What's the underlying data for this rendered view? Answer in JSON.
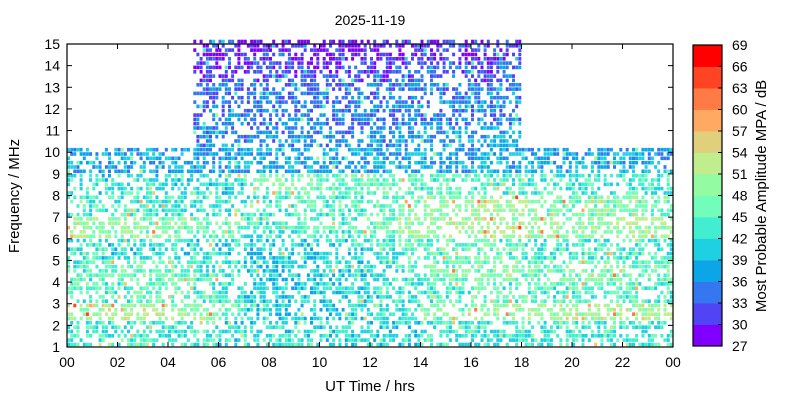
{
  "chart_data": {
    "type": "heatmap",
    "title": "2025-11-19",
    "xlabel": "UT Time / hrs",
    "ylabel": "Frequency / MHz",
    "colorbar_label": "Most Probable Amplitude MPA / dB",
    "xlim": [
      0,
      24
    ],
    "ylim": [
      1,
      15
    ],
    "xticks": [
      "00",
      "02",
      "04",
      "06",
      "08",
      "10",
      "12",
      "14",
      "16",
      "18",
      "20",
      "22",
      "00"
    ],
    "yticks": [
      "1",
      "2",
      "3",
      "4",
      "5",
      "6",
      "7",
      "8",
      "9",
      "10",
      "11",
      "12",
      "13",
      "14",
      "15"
    ],
    "colorbar_ticks": [
      "27",
      "30",
      "33",
      "36",
      "39",
      "42",
      "45",
      "48",
      "51",
      "54",
      "57",
      "60",
      "63",
      "66",
      "69"
    ],
    "colorbar_range": [
      27,
      69
    ],
    "colorbar_colors": [
      "#7f00ff",
      "#5044f4",
      "#3477ee",
      "#0ca6e8",
      "#1fcfe2",
      "#42eecf",
      "#72fdbb",
      "#93fba2",
      "#c0ee8e",
      "#e0d07c",
      "#ffa963",
      "#ff7a45",
      "#ff4424",
      "#ff0000"
    ],
    "frequency_bands_mhz": [
      "1-2",
      "2-3",
      "3-4",
      "4-5",
      "5-6",
      "6-7",
      "7-8",
      "8-9",
      "9-10",
      "10-11",
      "11-12",
      "12-13",
      "13-14",
      "14-15"
    ],
    "hourly_mpa_db": [
      [
        43,
        50,
        45,
        45,
        42,
        49,
        44,
        42,
        38,
        null,
        null,
        null,
        null,
        null
      ],
      [
        43,
        51,
        45,
        46,
        42,
        49,
        44,
        42,
        38,
        null,
        null,
        null,
        null,
        null
      ],
      [
        43,
        51,
        45,
        47,
        42,
        50,
        44,
        43,
        38,
        null,
        null,
        null,
        null,
        null
      ],
      [
        43,
        51,
        46,
        46,
        42,
        48,
        44,
        42,
        38,
        null,
        null,
        null,
        null,
        null
      ],
      [
        43,
        50,
        46,
        45,
        42,
        48,
        44,
        42,
        38,
        null,
        null,
        null,
        null,
        null
      ],
      [
        43,
        49,
        45,
        44,
        42,
        47,
        43,
        42,
        37,
        36,
        35,
        34,
        31,
        30
      ],
      [
        42,
        46,
        44,
        43,
        42,
        47,
        43,
        42,
        37,
        36,
        35,
        34,
        31,
        30
      ],
      [
        42,
        42,
        41,
        41,
        41,
        44,
        44,
        46,
        38,
        36,
        35,
        34,
        31,
        30
      ],
      [
        42,
        41,
        41,
        41,
        41,
        44,
        44,
        47,
        38,
        36,
        35,
        34,
        32,
        30
      ],
      [
        42,
        41,
        41,
        41,
        41,
        44,
        45,
        47,
        38,
        36,
        35,
        34,
        32,
        30
      ],
      [
        42,
        41,
        41,
        41,
        41,
        45,
        45,
        46,
        38,
        36,
        35,
        34,
        32,
        30
      ],
      [
        42,
        41,
        41,
        41,
        42,
        45,
        45,
        46,
        38,
        36,
        35,
        35,
        32,
        30
      ],
      [
        42,
        42,
        42,
        42,
        43,
        46,
        46,
        46,
        38,
        36,
        35,
        35,
        32,
        30
      ],
      [
        42,
        44,
        43,
        44,
        45,
        49,
        48,
        46,
        38,
        37,
        36,
        35,
        33,
        30
      ],
      [
        43,
        46,
        44,
        46,
        45,
        50,
        49,
        45,
        38,
        37,
        36,
        35,
        33,
        31
      ],
      [
        43,
        48,
        44,
        47,
        46,
        51,
        49,
        45,
        38,
        37,
        36,
        36,
        33,
        31
      ],
      [
        43,
        49,
        45,
        48,
        46,
        52,
        50,
        44,
        38,
        37,
        36,
        36,
        33,
        31
      ],
      [
        43,
        50,
        45,
        48,
        45,
        51,
        50,
        44,
        38,
        37,
        36,
        36,
        34,
        31
      ],
      [
        43,
        50,
        45,
        47,
        44,
        50,
        49,
        44,
        38,
        null,
        null,
        null,
        null,
        null
      ],
      [
        43,
        51,
        45,
        47,
        44,
        50,
        48,
        44,
        38,
        null,
        null,
        null,
        null,
        null
      ],
      [
        43,
        51,
        45,
        47,
        44,
        50,
        48,
        44,
        38,
        null,
        null,
        null,
        null,
        null
      ],
      [
        43,
        51,
        45,
        47,
        44,
        50,
        48,
        44,
        38,
        null,
        null,
        null,
        null,
        null
      ],
      [
        43,
        51,
        45,
        46,
        44,
        50,
        48,
        44,
        38,
        null,
        null,
        null,
        null,
        null
      ],
      [
        43,
        51,
        45,
        46,
        44,
        49,
        47,
        44,
        38,
        null,
        null,
        null,
        null,
        null
      ]
    ]
  }
}
